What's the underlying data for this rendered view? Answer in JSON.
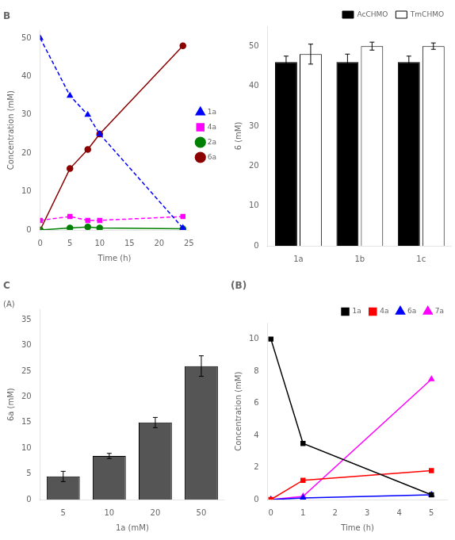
{
  "chart_data": [
    {
      "type": "line",
      "title": "B",
      "xlabel": "Time (h)",
      "ylabel": "Concentration (mM)",
      "xlim": [
        0,
        25
      ],
      "xticks": [
        0,
        5,
        10,
        15,
        20,
        25
      ],
      "ylim": [
        0,
        52
      ],
      "yticks": [
        0,
        10,
        20,
        30,
        40,
        50
      ],
      "grid": false,
      "legend": "center right",
      "series": [
        {
          "name": "1a",
          "color": "#0000FF",
          "line_style": "dashed",
          "marker": "triangle",
          "x": [
            0,
            5,
            8,
            10,
            24
          ],
          "values": [
            50,
            35,
            30,
            25,
            0.5
          ]
        },
        {
          "name": "4a",
          "color": "#FF00FF",
          "line_style": "dashed",
          "marker": "square",
          "x": [
            0,
            5,
            8,
            10,
            24
          ],
          "values": [
            2.5,
            3.5,
            2.5,
            2.5,
            3.5
          ]
        },
        {
          "name": "2a",
          "color": "#008000",
          "line_style": "solid",
          "marker": "circle",
          "x": [
            0,
            5,
            8,
            10,
            24
          ],
          "values": [
            0,
            0.5,
            0.8,
            0.5,
            0.3
          ]
        },
        {
          "name": "6a",
          "color": "#8B0000",
          "line_style": "solid",
          "marker": "circle",
          "x": [
            0,
            5,
            8,
            10,
            24
          ],
          "values": [
            0,
            16,
            21,
            25,
            48
          ]
        }
      ]
    },
    {
      "type": "bar",
      "categories": [
        "1a",
        "1b",
        "1c"
      ],
      "ylabel": "6 (mM)",
      "ylim": [
        0,
        55
      ],
      "yticks": [
        0,
        10,
        20,
        30,
        40,
        50
      ],
      "grid": false,
      "legend": "upper right",
      "series": [
        {
          "name": "AcCHMO",
          "color": "#000000",
          "values": [
            46,
            46,
            46
          ],
          "errors": [
            1.5,
            2.0,
            1.5
          ]
        },
        {
          "name": "TmCHMO",
          "color": "white",
          "values": [
            48,
            50,
            50
          ],
          "errors": [
            2.5,
            1.0,
            0.8
          ]
        }
      ]
    },
    {
      "type": "bar",
      "title": "C",
      "subtitle": "(A)",
      "categories": [
        "5",
        "10",
        "20",
        "50"
      ],
      "values": [
        4.5,
        8.5,
        15,
        26
      ],
      "errors": [
        1.0,
        0.5,
        1.0,
        2.0
      ],
      "color": "#555555",
      "xlabel": "1a (mM)",
      "ylabel": "6a (mM)",
      "ylim": [
        0,
        37
      ],
      "yticks": [
        0,
        5,
        10,
        15,
        20,
        25,
        30,
        35
      ],
      "grid": false
    },
    {
      "type": "line",
      "title": "(B)",
      "xlabel": "Time (h)",
      "ylabel": "Concentration (mM)",
      "xlim": [
        -0.1,
        5.5
      ],
      "xticks": [
        0,
        1,
        2,
        3,
        4,
        5
      ],
      "ylim": [
        0,
        11
      ],
      "yticks": [
        0,
        2,
        4,
        6,
        8,
        10
      ],
      "grid": false,
      "legend": "upper right",
      "series": [
        {
          "name": "1a",
          "color": "black",
          "line_style": "solid",
          "marker": "square",
          "x": [
            0,
            1,
            5
          ],
          "values": [
            10,
            3.5,
            0.3
          ]
        },
        {
          "name": "4a",
          "color": "red",
          "line_style": "solid",
          "marker": "square",
          "x": [
            0,
            1,
            5
          ],
          "values": [
            0,
            1.2,
            1.8
          ]
        },
        {
          "name": "6a",
          "color": "blue",
          "line_style": "solid",
          "marker": "triangle",
          "x": [
            0,
            1,
            5
          ],
          "values": [
            0,
            0.1,
            0.3
          ]
        },
        {
          "name": "7a",
          "color": "magenta",
          "line_style": "solid",
          "marker": "triangle",
          "x": [
            0,
            1,
            5
          ],
          "values": [
            0,
            0.2,
            7.5
          ]
        }
      ]
    }
  ]
}
